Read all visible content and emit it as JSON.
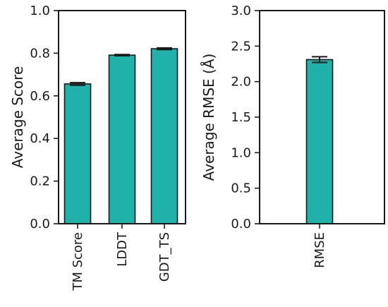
{
  "chart_data": [
    {
      "type": "bar",
      "categories": [
        "TM Score",
        "LDDT",
        "GDT_TS"
      ],
      "values": [
        0.656,
        0.791,
        0.821
      ],
      "errors": [
        0.006,
        0.003,
        0.004
      ],
      "ylabel": "Average Score",
      "ylim": [
        0,
        1.0
      ],
      "yticks": [
        "0.0",
        "0.2",
        "0.4",
        "0.6",
        "0.8",
        "1.0"
      ],
      "bar_color": "#20b2aa",
      "grid": false
    },
    {
      "type": "bar",
      "categories": [
        "RMSE"
      ],
      "values": [
        2.31
      ],
      "errors": [
        0.04
      ],
      "ylabel": "Average RMSE (Å)",
      "ylim": [
        0,
        3.0
      ],
      "yticks": [
        "0.0",
        "0.5",
        "1.0",
        "1.5",
        "2.0",
        "2.5",
        "3.0"
      ],
      "bar_color": "#20b2aa",
      "grid": false
    }
  ]
}
